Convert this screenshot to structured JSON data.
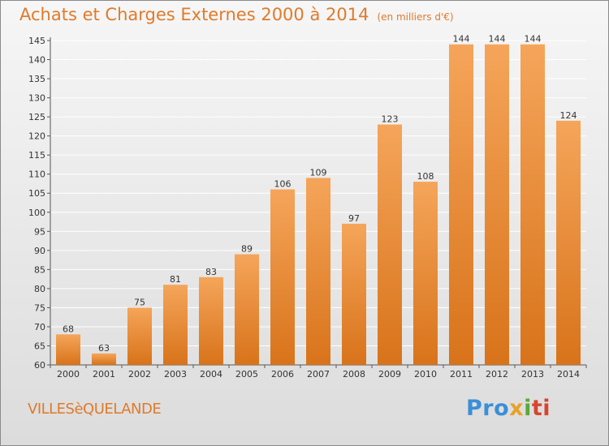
{
  "title": "Achats et Charges Externes 2000 à 2014",
  "subtitle": "(en milliers d'€)",
  "commune": "VILLESèQUELANDE",
  "logo": {
    "part1": "Pro",
    "part2": "x",
    "part3": "i",
    "part4": "ti"
  },
  "colors": {
    "bar_top": "#f5a55a",
    "bar_bottom": "#d8731a",
    "title": "#e07a2a",
    "grid": "#ffffff"
  },
  "chart_data": {
    "type": "bar",
    "categories": [
      "2000",
      "2001",
      "2002",
      "2003",
      "2004",
      "2005",
      "2006",
      "2007",
      "2008",
      "2009",
      "2010",
      "2011",
      "2012",
      "2013",
      "2014"
    ],
    "values": [
      68,
      63,
      75,
      81,
      83,
      89,
      106,
      109,
      97,
      123,
      108,
      144,
      144,
      144,
      124
    ],
    "ylim": [
      60,
      145
    ],
    "yticks": [
      60,
      65,
      70,
      75,
      80,
      85,
      90,
      95,
      100,
      105,
      110,
      115,
      120,
      125,
      130,
      135,
      140,
      145
    ],
    "grid": true
  }
}
